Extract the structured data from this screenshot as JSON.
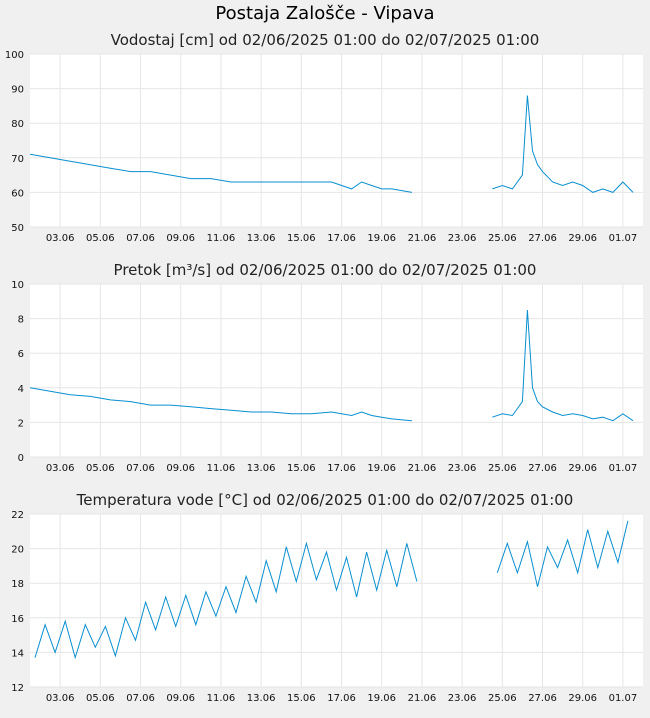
{
  "page": {
    "title": "Postaja Zalošče - Vipava"
  },
  "style": {
    "line_color": "#0a8fd0",
    "plot_bg": "#ffffff",
    "page_bg": "#f0f0f0",
    "grid_color": "#e6e6e6"
  },
  "chart_data": [
    {
      "type": "line",
      "title": "Vodostaj [cm] od 02/06/2025 01:00 do 02/07/2025 01:00",
      "xlabel": "",
      "ylabel": "",
      "ylim": [
        50,
        100
      ],
      "yticks": [
        "50",
        "60",
        "70",
        "80",
        "90",
        "100"
      ],
      "xtick_labels": [
        "03.06",
        "05.06",
        "07.06",
        "09.06",
        "11.06",
        "13.06",
        "15.06",
        "17.06",
        "19.06",
        "21.06",
        "23.06",
        "25.06",
        "27.06",
        "29.06",
        "01.07"
      ],
      "grid": true,
      "series": [
        {
          "x": [
            "2025-06-02",
            "2025-06-03",
            "2025-06-04",
            "2025-06-05",
            "2025-06-06",
            "2025-06-07",
            "2025-06-08",
            "2025-06-09",
            "2025-06-10",
            "2025-06-11",
            "2025-06-12",
            "2025-06-13",
            "2025-06-14",
            "2025-06-15",
            "2025-06-16",
            "2025-06-17",
            "2025-06-18",
            "2025-06-18T12:00",
            "2025-06-19",
            "2025-06-19T12:00",
            "2025-06-20",
            "2025-06-21",
            "2025-06-21T12:00",
            "2025-06-22",
            "2025-06-22T12:00",
            "2025-06-23",
            "2025-06-23T12:00",
            "2025-06-24",
            "2025-06-24T12:00",
            "2025-06-25",
            "2025-06-25T12:00",
            "2025-06-26",
            "2025-06-26T12:00",
            "2025-06-26T18:00",
            "2025-06-27",
            "2025-06-27T06:00",
            "2025-06-27T12:00",
            "2025-06-28",
            "2025-06-28T12:00",
            "2025-06-29",
            "2025-06-29T12:00",
            "2025-06-30",
            "2025-06-30T12:00",
            "2025-07-01",
            "2025-07-01T12:00",
            "2025-07-02"
          ],
          "y": [
            71,
            70,
            69,
            68,
            67,
            66,
            66,
            65,
            64,
            64,
            63,
            63,
            63,
            63,
            63,
            63,
            61,
            63,
            62,
            61,
            61,
            60,
            null,
            60,
            null,
            60,
            null,
            60,
            null,
            61,
            62,
            61,
            65,
            88,
            72,
            68,
            66,
            63,
            62,
            63,
            62,
            60,
            61,
            60,
            63,
            60
          ]
        }
      ]
    },
    {
      "type": "line",
      "title": "Pretok [m³/s] od 02/06/2025 01:00 do 02/07/2025 01:00",
      "xlabel": "",
      "ylabel": "",
      "ylim": [
        0,
        10
      ],
      "yticks": [
        "0",
        "2",
        "4",
        "6",
        "8",
        "10"
      ],
      "xtick_labels": [
        "03.06",
        "05.06",
        "07.06",
        "09.06",
        "11.06",
        "13.06",
        "15.06",
        "17.06",
        "19.06",
        "21.06",
        "23.06",
        "25.06",
        "27.06",
        "29.06",
        "01.07"
      ],
      "grid": true,
      "series": [
        {
          "x": [
            "2025-06-02",
            "2025-06-03",
            "2025-06-04",
            "2025-06-05",
            "2025-06-06",
            "2025-06-07",
            "2025-06-08",
            "2025-06-09",
            "2025-06-10",
            "2025-06-11",
            "2025-06-12",
            "2025-06-13",
            "2025-06-14",
            "2025-06-15",
            "2025-06-16",
            "2025-06-17",
            "2025-06-18",
            "2025-06-18T12:00",
            "2025-06-19",
            "2025-06-19T12:00",
            "2025-06-20",
            "2025-06-21",
            "2025-06-21T12:00",
            "2025-06-22",
            "2025-06-22T12:00",
            "2025-06-23",
            "2025-06-23T12:00",
            "2025-06-24",
            "2025-06-24T12:00",
            "2025-06-25",
            "2025-06-25T12:00",
            "2025-06-26",
            "2025-06-26T12:00",
            "2025-06-26T18:00",
            "2025-06-27",
            "2025-06-27T06:00",
            "2025-06-27T12:00",
            "2025-06-28",
            "2025-06-28T12:00",
            "2025-06-29",
            "2025-06-29T12:00",
            "2025-06-30",
            "2025-06-30T12:00",
            "2025-07-01",
            "2025-07-01T12:00",
            "2025-07-02"
          ],
          "y": [
            4.0,
            3.8,
            3.6,
            3.5,
            3.3,
            3.2,
            3.0,
            3.0,
            2.9,
            2.8,
            2.7,
            2.6,
            2.6,
            2.5,
            2.5,
            2.6,
            2.4,
            2.6,
            2.4,
            2.3,
            2.2,
            2.1,
            null,
            2.1,
            null,
            2.1,
            null,
            2.1,
            null,
            2.3,
            2.5,
            2.4,
            3.2,
            8.5,
            4.0,
            3.2,
            2.9,
            2.6,
            2.4,
            2.5,
            2.4,
            2.2,
            2.3,
            2.1,
            2.5,
            2.1
          ]
        }
      ]
    },
    {
      "type": "line",
      "title": "Temperatura vode [°C] od 02/06/2025 01:00 do 02/07/2025 01:00",
      "xlabel": "",
      "ylabel": "",
      "ylim": [
        12,
        22
      ],
      "yticks": [
        "12",
        "14",
        "16",
        "18",
        "20",
        "22"
      ],
      "xtick_labels": [
        "03.06",
        "05.06",
        "07.06",
        "09.06",
        "11.06",
        "13.06",
        "15.06",
        "17.06",
        "19.06",
        "21.06",
        "23.06",
        "25.06",
        "27.06",
        "29.06",
        "01.07"
      ],
      "grid": true,
      "series": [
        {
          "x": [
            "2025-06-02T06:00",
            "2025-06-02T18:00",
            "2025-06-03T06:00",
            "2025-06-03T18:00",
            "2025-06-04T06:00",
            "2025-06-04T18:00",
            "2025-06-05T06:00",
            "2025-06-05T18:00",
            "2025-06-06T06:00",
            "2025-06-06T18:00",
            "2025-06-07T06:00",
            "2025-06-07T18:00",
            "2025-06-08T06:00",
            "2025-06-08T18:00",
            "2025-06-09T06:00",
            "2025-06-09T18:00",
            "2025-06-10T06:00",
            "2025-06-10T18:00",
            "2025-06-11T06:00",
            "2025-06-11T18:00",
            "2025-06-12T06:00",
            "2025-06-12T18:00",
            "2025-06-13T06:00",
            "2025-06-13T18:00",
            "2025-06-14T06:00",
            "2025-06-14T18:00",
            "2025-06-15T06:00",
            "2025-06-15T18:00",
            "2025-06-16T06:00",
            "2025-06-16T18:00",
            "2025-06-17T06:00",
            "2025-06-17T18:00",
            "2025-06-18T06:00",
            "2025-06-18T18:00",
            "2025-06-19T06:00",
            "2025-06-19T18:00",
            "2025-06-20T06:00",
            "2025-06-20T18:00",
            "2025-06-21T06:00",
            "2025-06-21T18:00",
            "2025-06-22T06:00",
            "2025-06-22T18:00",
            "2025-06-23T06:00",
            "2025-06-23T18:00",
            "2025-06-24T06:00",
            "2025-06-24T18:00",
            "2025-06-25T06:00",
            "2025-06-25T18:00",
            "2025-06-26T06:00",
            "2025-06-26T18:00",
            "2025-06-27T06:00",
            "2025-06-27T18:00",
            "2025-06-28T06:00",
            "2025-06-28T18:00",
            "2025-06-29T06:00",
            "2025-06-29T18:00",
            "2025-06-30T06:00",
            "2025-06-30T18:00",
            "2025-07-01T06:00",
            "2025-07-01T18:00"
          ],
          "y": [
            13.7,
            15.6,
            14.0,
            15.8,
            13.7,
            15.6,
            14.3,
            15.5,
            13.8,
            16.0,
            14.7,
            16.9,
            15.3,
            17.2,
            15.5,
            17.3,
            15.6,
            17.5,
            16.1,
            17.8,
            16.3,
            18.4,
            16.9,
            19.3,
            17.5,
            20.1,
            18.1,
            20.3,
            18.2,
            19.8,
            17.6,
            19.5,
            17.2,
            19.8,
            17.6,
            19.9,
            17.8,
            20.3,
            18.1,
            null,
            18.9,
            null,
            20.2,
            null,
            19.5,
            null,
            18.6,
            20.3,
            18.6,
            20.4,
            17.8,
            20.1,
            18.9,
            20.5,
            18.6,
            21.1,
            18.9,
            21.0,
            19.2,
            21.6
          ]
        }
      ]
    }
  ]
}
